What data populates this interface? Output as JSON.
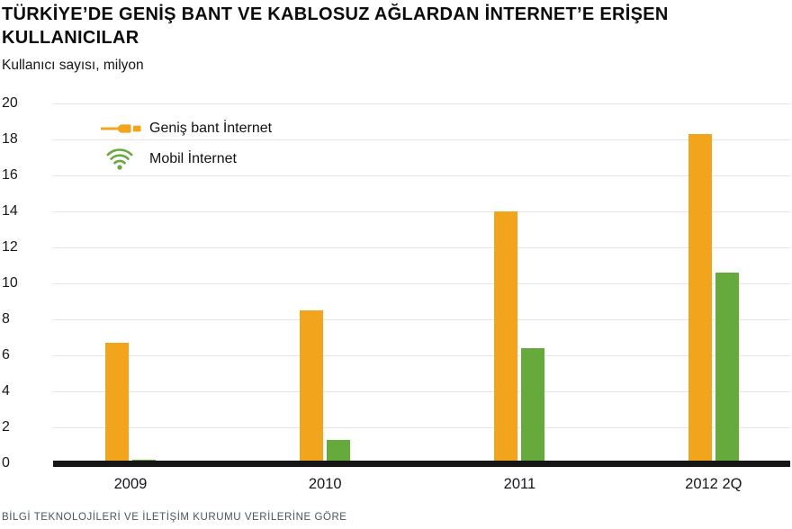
{
  "title": "TÜRKİYE’DE GENİŞ BANT VE KABLOSUZ AĞLARDAN İNTERNET’E ERİŞEN\nKULLANICILAR",
  "subtitle": "Kullanıcı sayısı, milyon",
  "source": "BİLGİ TEKNOLOJİLERİ VE İLETİŞİM KURUMU VERİLERİNE GÖRE",
  "legend": [
    {
      "id": "broadband",
      "label": "Geniş bant İnternet",
      "icon": "plug-icon",
      "color": "#F2A41D"
    },
    {
      "id": "mobile",
      "label": "Mobil İnternet",
      "icon": "wifi-icon",
      "color": "#66A93C"
    }
  ],
  "chart_data": {
    "type": "bar",
    "title": "TÜRKİYE’DE GENİŞ BANT VE KABLOSUZ AĞLARDAN İNTERNET’E ERİŞEN KULLANICILAR",
    "ylabel": "Kullanıcı sayısı, milyon",
    "categories": [
      "2009",
      "2010",
      "2011",
      "2012 2Q"
    ],
    "series": [
      {
        "id": "broadband",
        "name": "Geniş bant İnternet",
        "color": "#F2A41D",
        "values": [
          6.7,
          8.5,
          14.0,
          18.3
        ]
      },
      {
        "id": "mobile",
        "name": "Mobil İnternet",
        "color": "#66A93C",
        "values": [
          0.2,
          1.3,
          6.4,
          10.6
        ]
      }
    ],
    "ylim": [
      0,
      20
    ],
    "yticks": [
      0,
      2,
      4,
      6,
      8,
      10,
      12,
      14,
      16,
      18,
      20
    ],
    "grid": true,
    "legend_position": "top-left-inside",
    "gridline_color": "#e4e4e4",
    "axis_line_color": "#161616"
  }
}
